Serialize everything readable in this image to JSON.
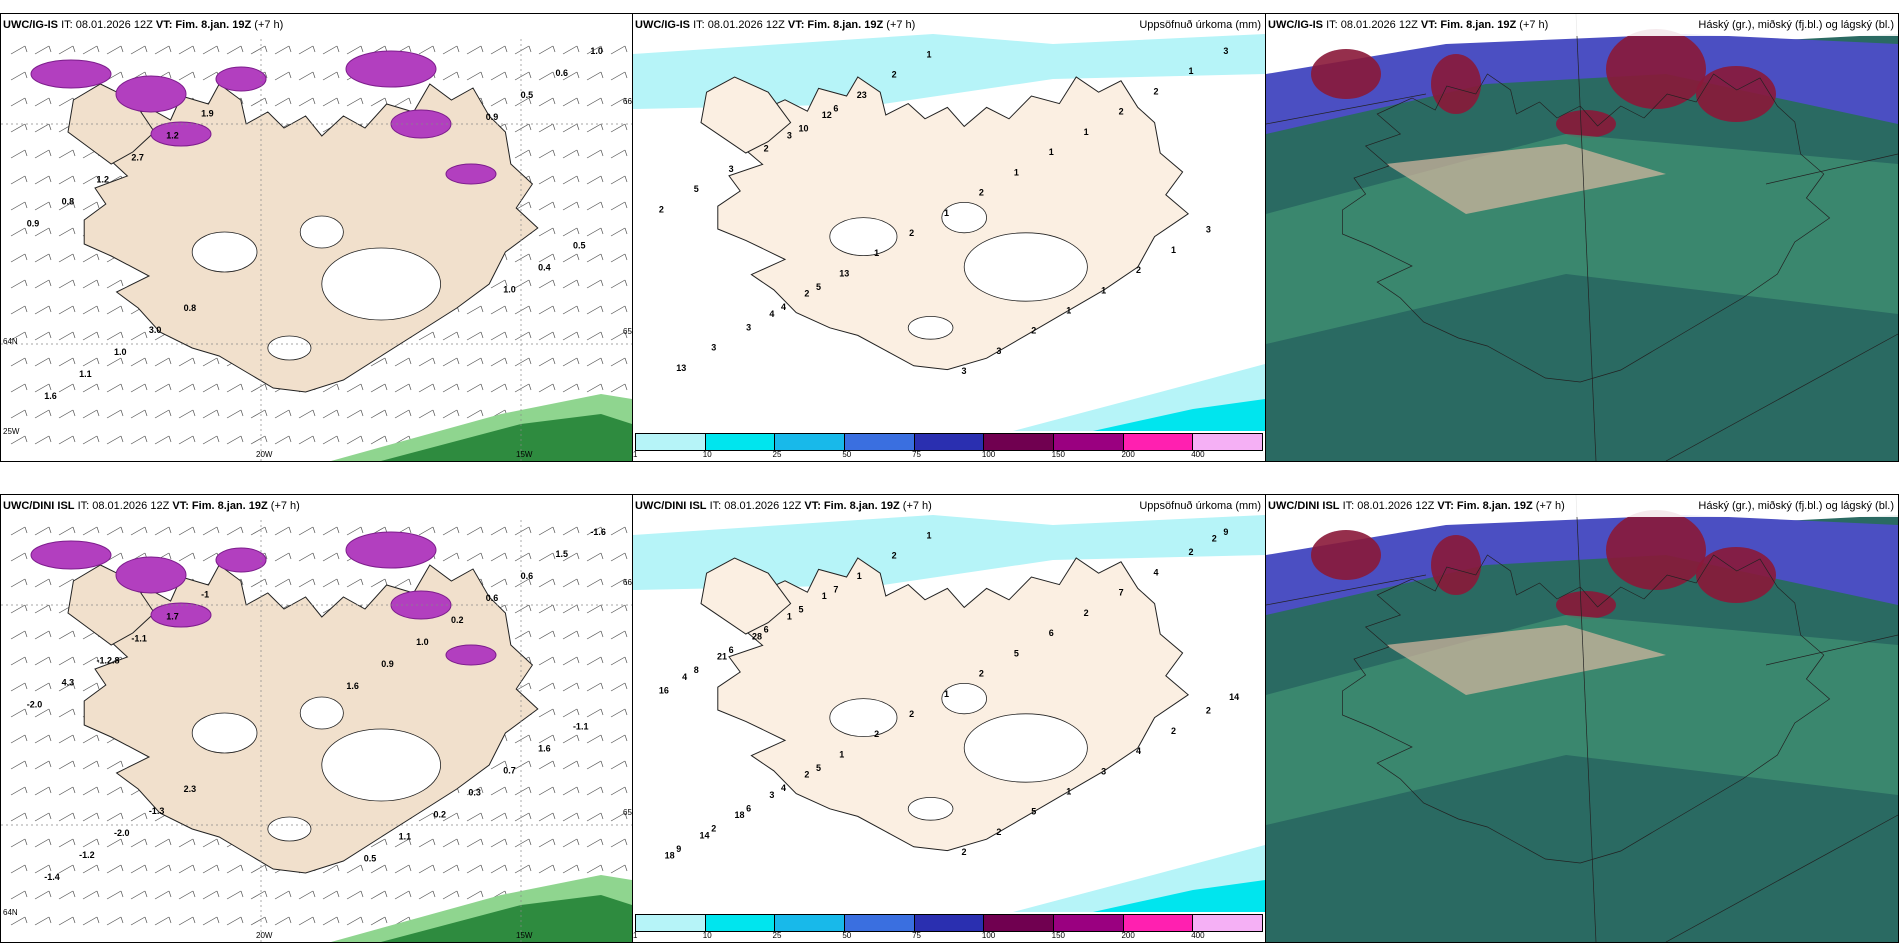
{
  "rows": [
    {
      "id": "top",
      "panels": [
        {
          "kind": "wind",
          "header_model": "UWC/IG-IS",
          "header_it": "IT: 08.01.2026 12Z",
          "header_vt": "VT: Fim. 8.jan. 19Z",
          "header_lead": "(+7 h)",
          "labels": [
            "1.9",
            "0.8",
            "1.2",
            "3.0",
            "2.7",
            "1.0",
            "1.2",
            "1.1",
            "0.8",
            "1.6",
            "0.9",
            "1.0",
            "0.5",
            "0.6",
            "0.4",
            "0.5",
            "1.0",
            "0.9"
          ],
          "axis_labels": [
            "20W",
            "15W",
            "66N",
            "65N",
            "25W",
            "64N"
          ]
        },
        {
          "kind": "precip",
          "header_model": "UWC/IG-IS",
          "header_it": "IT: 08.01.2026 12Z",
          "header_vt": "VT: Fim. 8.jan. 19Z",
          "header_lead": "(+7 h)",
          "header_right": "Uppsöfnuð úrkoma (mm)",
          "labels": [
            "6",
            "5",
            "10",
            "4",
            "2",
            "3",
            "3",
            "3",
            "5",
            "13",
            "2",
            "3",
            "3",
            "1",
            "1",
            "2",
            "2",
            "2",
            "1",
            "1",
            "1",
            "1",
            "2",
            "1",
            "3",
            "2",
            "3",
            "1",
            "1",
            "2",
            "2",
            "1",
            "23",
            "13",
            "12",
            "2",
            "3",
            "4"
          ]
        },
        {
          "kind": "cloud",
          "header_model": "UWC/IG-IS",
          "header_it": "IT: 08.01.2026 12Z",
          "header_vt": "VT: Fim. 8.jan. 19Z",
          "header_lead": "(+7 h)",
          "header_right": "Háský (gr.), miðský (fj.bl.) og lágský (bl.)"
        }
      ]
    },
    {
      "id": "bottom",
      "panels": [
        {
          "kind": "wind",
          "header_model": "UWC/DINI ISL",
          "header_it": "IT: 08.01.2026 12Z",
          "header_vt": "VT: Fim. 8.jan. 19Z",
          "header_lead": "(+7 h)",
          "labels": [
            "-1",
            "2.3",
            "1.7",
            "-1.3",
            "-1.1",
            "-2.0",
            "-1.2.8",
            "-1.2",
            "4.3",
            "-1.4",
            "-2.0",
            "-1.6",
            "-1.1",
            "1.5",
            "1.6",
            "0.6",
            "0.7",
            "0.6",
            "0.3",
            "0.2",
            "0.2",
            "1.0",
            "1.1",
            "0.9",
            "0.5",
            "1.6"
          ],
          "axis_labels": [
            "20W",
            "15W",
            "66N",
            "65N",
            "64N"
          ]
        },
        {
          "kind": "precip",
          "header_model": "UWC/DINI ISL",
          "header_it": "IT: 08.01.2026 12Z",
          "header_vt": "VT: Fim. 8.jan. 19Z",
          "header_lead": "(+7 h)",
          "header_right": "Uppsöfnuð úrkoma (mm)",
          "labels": [
            "7",
            "5",
            "5",
            "4",
            "6",
            "6",
            "6",
            "2",
            "8",
            "9",
            "16",
            "9",
            "2",
            "2",
            "2",
            "4",
            "4",
            "7",
            "3",
            "2",
            "1",
            "6",
            "5",
            "5",
            "2",
            "2",
            "2",
            "1",
            "1",
            "2",
            "2",
            "2",
            "1",
            "1",
            "1",
            "2",
            "1",
            "3",
            "28",
            "18",
            "21",
            "14",
            "4",
            "18",
            "14",
            "2"
          ]
        },
        {
          "kind": "cloud",
          "header_model": "UWC/DINI ISL",
          "header_it": "IT: 08.01.2026 12Z",
          "header_vt": "VT: Fim. 8.jan. 19Z",
          "header_lead": "(+7 h)",
          "header_right": "Háský (gr.), miðský (fj.bl.) og lágský (bl.)"
        }
      ]
    }
  ],
  "colorbar": {
    "ticks": [
      "1",
      "10",
      "25",
      "50",
      "75",
      "100",
      "150",
      "200",
      "400"
    ],
    "colors": [
      "#b6f4f8",
      "#00e5ee",
      "#18b9ea",
      "#3a6fe0",
      "#2a2fb0",
      "#700050",
      "#9a0080",
      "#ff20b0",
      "#f5b0f5"
    ]
  },
  "colors": {
    "land": "#f1e0cc",
    "land_precip": "#fbefe2",
    "sea": "#ffffff",
    "cloud_dark": "#2a6a62",
    "cloud_mid": "#3f8f72",
    "cloud_blue": "#4b4fc2",
    "cloud_red": "#8a1838"
  }
}
